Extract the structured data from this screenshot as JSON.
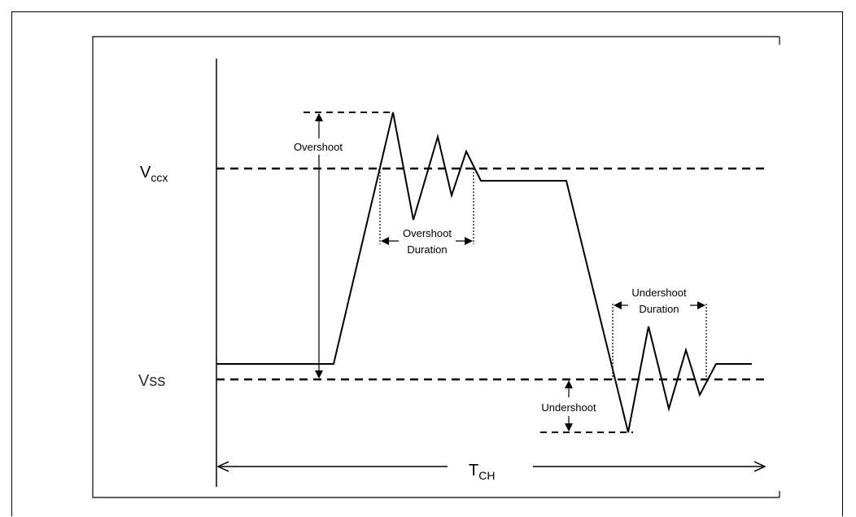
{
  "labels": {
    "vccx_main": "V",
    "vccx_sub": "ccx",
    "vss": "Vss",
    "overshoot": "Overshoot",
    "overshoot_duration_1": "Overshoot",
    "overshoot_duration_2": "Duration",
    "undershoot": "Undershoot",
    "undershoot_duration_1": "Undershoot",
    "undershoot_duration_2": "Duration",
    "tch_main": "T",
    "tch_sub": "CH"
  }
}
